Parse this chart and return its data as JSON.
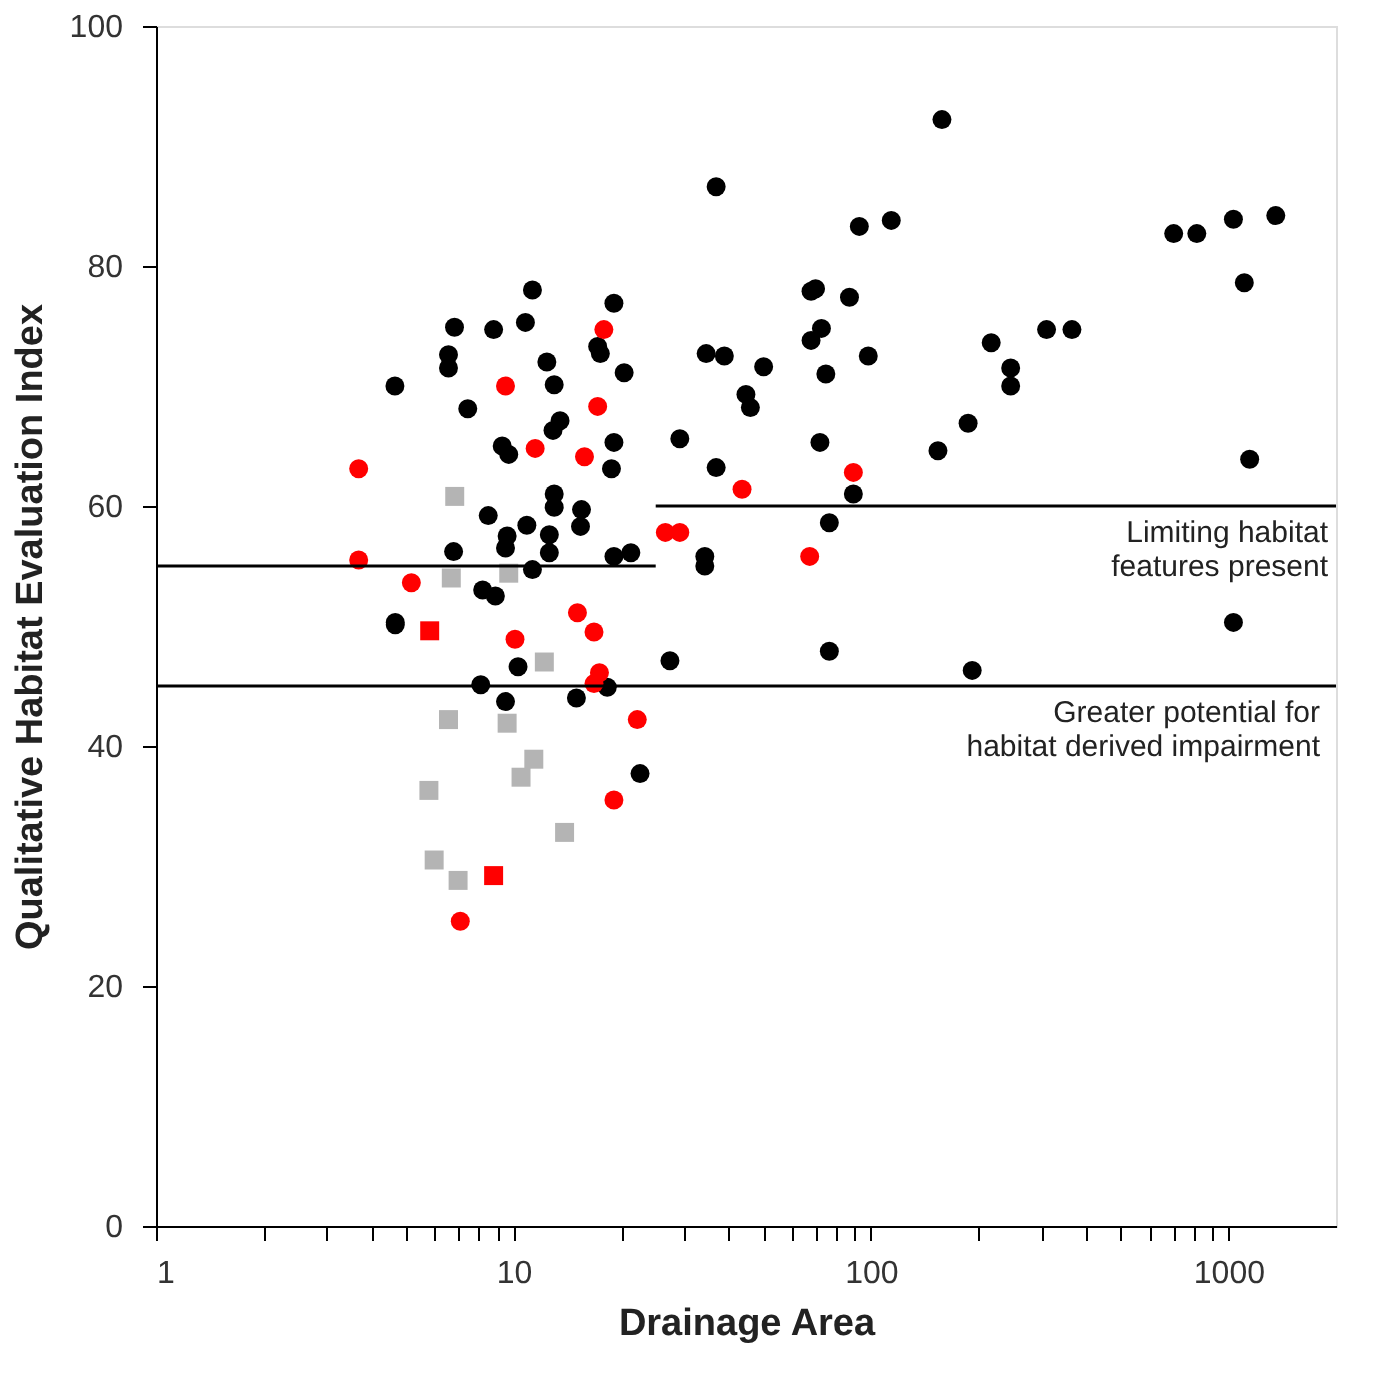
{
  "chart_data": {
    "type": "scatter",
    "xlabel": "Drainage Area",
    "ylabel": "Qualitative Habitat Evaluation Index",
    "log": "x",
    "grid": false,
    "xlim": [
      1,
      2000
    ],
    "ylim": [
      0,
      100
    ],
    "xticks": [
      1,
      {
        "value": 2,
        "label": null
      },
      {
        "value": 3,
        "label": null
      },
      {
        "value": 4,
        "label": null
      },
      {
        "value": 5,
        "label": null
      },
      {
        "value": 6,
        "label": null
      },
      {
        "value": 7,
        "label": null
      },
      {
        "value": 8,
        "label": null
      },
      {
        "value": 9,
        "label": null
      },
      10,
      {
        "value": 20,
        "label": null
      },
      {
        "value": 30,
        "label": null
      },
      {
        "value": 40,
        "label": null
      },
      {
        "value": 50,
        "label": null
      },
      {
        "value": 60,
        "label": null
      },
      {
        "value": 70,
        "label": null
      },
      {
        "value": 80,
        "label": null
      },
      {
        "value": 90,
        "label": null
      },
      100,
      {
        "value": 200,
        "label": null
      },
      {
        "value": 300,
        "label": null
      },
      {
        "value": 400,
        "label": null
      },
      {
        "value": 500,
        "label": null
      },
      {
        "value": 600,
        "label": null
      },
      {
        "value": 700,
        "label": null
      },
      {
        "value": 800,
        "label": null
      },
      {
        "value": 900,
        "label": null
      },
      1000
    ],
    "yticks": [
      0,
      20,
      40,
      60,
      80,
      100
    ],
    "series": [
      {
        "marker": "circle",
        "color": "#000000",
        "x": [
          4.66,
          4.67,
          11.3,
          19.1,
          6.84,
          8.8,
          10.8,
          6.58,
          6.58,
          12.4,
          13.0,
          17.2,
          17.5,
          20.4,
          7.45,
          13.5,
          12.9,
          9.3,
          9.7,
          19.1,
          18.8,
          29.2,
          13.0,
          13.0,
          15.5,
          15.4,
          8.5,
          10.9,
          12.6,
          9.6,
          9.5,
          6.8,
          12.6,
          19.1,
          21.3,
          11.3,
          8.2,
          8.9,
          4.67,
          10.3,
          8.1,
          9.5,
          15.0,
          18.3,
          27.4,
          22.6,
          158,
          36.9,
          92.8,
          114,
          68,
          70,
          87.1,
          72.7,
          68,
          34.6,
          38.9,
          50.1,
          74.8,
          98.3,
          217,
          246,
          246,
          44.7,
          46,
          72,
          36.9,
          154,
          187,
          89.3,
          76.5,
          34.3,
          34.3,
          76.5,
          192,
          703,
          816,
          1033,
          1357,
          1108,
          310,
          365,
          1147,
          1033
        ],
        "values": [
          70.0,
          50.3,
          78.0,
          76.9,
          74.9,
          74.7,
          75.3,
          72.6,
          71.5,
          72.0,
          70.1,
          73.3,
          72.7,
          71.1,
          68.1,
          67.1,
          66.3,
          65.0,
          64.3,
          65.3,
          63.1,
          65.6,
          61.0,
          59.9,
          59.7,
          58.3,
          59.2,
          58.4,
          57.6,
          57.5,
          56.5,
          56.2,
          56.1,
          55.8,
          56.1,
          54.7,
          53.0,
          52.5,
          50.1,
          46.6,
          45.1,
          43.7,
          44.0,
          44.9,
          47.1,
          37.7,
          92.2,
          86.6,
          83.3,
          83.8,
          77.9,
          78.1,
          77.4,
          74.8,
          73.8,
          72.7,
          72.5,
          71.6,
          71.0,
          72.5,
          73.6,
          71.5,
          70.0,
          69.3,
          68.2,
          65.3,
          63.2,
          64.6,
          66.9,
          61.0,
          58.6,
          55.8,
          55.0,
          47.9,
          46.3,
          82.7,
          82.7,
          83.9,
          84.2,
          78.6,
          74.7,
          74.7,
          63.9,
          50.3
        ]
      },
      {
        "marker": "circle",
        "color": "#ff0000",
        "x": [
          17.9,
          9.5,
          17.2,
          11.5,
          15.8,
          3.69,
          3.69,
          5.18,
          26.6,
          29.2,
          10.1,
          15.1,
          16.8,
          17.4,
          16.8,
          22.2,
          19.1,
          7.1,
          43.6,
          89.3,
          67.4
        ],
        "values": [
          74.7,
          70.0,
          68.3,
          64.8,
          64.1,
          63.1,
          55.5,
          53.6,
          57.8,
          57.8,
          48.9,
          51.1,
          49.5,
          46.1,
          45.2,
          42.2,
          35.5,
          25.4,
          61.4,
          62.8,
          55.8
        ]
      },
      {
        "marker": "square",
        "color": "#ff0000",
        "x": [
          5.83,
          8.8
        ],
        "values": [
          49.6,
          29.2
        ]
      },
      {
        "marker": "square",
        "color": "#b4b4b4",
        "x": [
          6.85,
          6.7,
          9.7,
          12.2,
          6.58,
          9.6,
          11.4,
          10.5,
          5.8,
          13.9,
          6.0,
          7.0
        ],
        "values": [
          60.8,
          54.0,
          54.4,
          47.0,
          42.2,
          41.9,
          38.9,
          37.4,
          36.3,
          32.8,
          30.5,
          28.8
        ]
      },
      {
        "type": "line",
        "color": "#000000",
        "x": [
          1,
          25
        ],
        "values": [
          55,
          55
        ]
      },
      {
        "type": "line",
        "color": "#000000",
        "x": [
          25,
          2000
        ],
        "values": [
          60,
          60
        ]
      }
    ],
    "ref_lines": [
      {
        "axis": "y",
        "value": 45,
        "label": "Greater potential for\nhabitat derived impairment",
        "color": "#000000"
      }
    ],
    "annotations": [
      {
        "text": "Limiting habitat\nfeatures present",
        "x": 1900,
        "y": 60
      }
    ]
  }
}
